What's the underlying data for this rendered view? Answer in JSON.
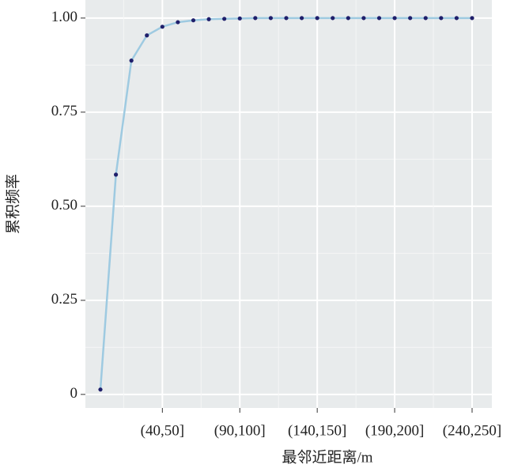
{
  "chart_data": {
    "type": "line",
    "x_label": "最邻近距离/m",
    "y_label": "累积频率",
    "categories": [
      null,
      null,
      null,
      null,
      "(40,50]",
      null,
      null,
      null,
      null,
      "(90,100]",
      null,
      null,
      null,
      null,
      "(140,150]",
      null,
      null,
      null,
      null,
      "(190,200]",
      null,
      null,
      null,
      null,
      "(240,250]"
    ],
    "values": [
      0.013,
      0.584,
      0.887,
      0.954,
      0.977,
      0.989,
      0.994,
      0.997,
      0.998,
      0.999,
      1.0,
      1.0,
      1.0,
      1.0,
      1.0,
      1.0,
      1.0,
      1.0,
      1.0,
      1.0,
      1.0,
      1.0,
      1.0,
      1.0,
      1.0
    ],
    "color": "#9ecae1",
    "marker_color": "#1f1f6b",
    "ylim": [
      -0.036,
      1.048
    ],
    "yticks": [
      0,
      0.25,
      {
        "value": 0.5,
        "label": "0.50"
      },
      0.75,
      {
        "value": 1,
        "label": "1.00"
      }
    ],
    "grid": true
  }
}
